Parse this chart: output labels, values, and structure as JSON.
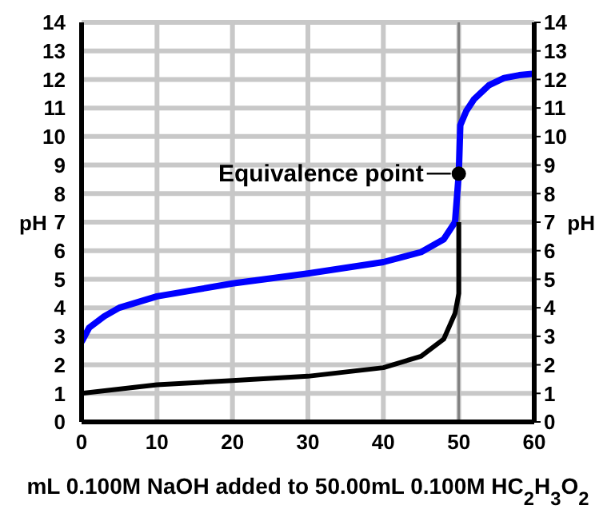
{
  "chart_data": {
    "type": "line",
    "xlabel": "mL 0.100M NaOH added to 50.00mL 0.100M HC$_{2}$H$_{3}$O$_{2}$",
    "ylabel": "pH",
    "y2label": "pH",
    "xlim": [
      0,
      60
    ],
    "xticks": [
      0,
      10,
      20,
      30,
      40,
      50,
      60
    ],
    "ylim": [
      0,
      14
    ],
    "yticks": [
      0,
      1,
      2,
      3,
      4,
      5,
      6,
      7,
      8,
      9,
      10,
      11,
      12,
      13,
      14
    ],
    "y2lim": [
      0,
      14
    ],
    "y2ticks": [
      0,
      1,
      2,
      3,
      4,
      5,
      6,
      7,
      8,
      9,
      10,
      11,
      12,
      13,
      14
    ],
    "grid": true,
    "marker": "none",
    "line_style": "solid",
    "ref_lines": [
      {
        "axis": "x",
        "value": 50,
        "label": null,
        "color": "#808080"
      }
    ],
    "annotations": [
      {
        "text": "Equivalence point",
        "x": 50,
        "y": 8.7
      }
    ],
    "series": [
      {
        "color": "#0000ff",
        "x": [
          0,
          1,
          3,
          5,
          10,
          20,
          30,
          40,
          45,
          48,
          49.5,
          50,
          50.2,
          51,
          52,
          54,
          56,
          58,
          60
        ],
        "values": [
          2.8,
          3.3,
          3.7,
          4.0,
          4.4,
          4.85,
          5.2,
          5.6,
          5.95,
          6.4,
          7.0,
          8.7,
          10.4,
          10.9,
          11.3,
          11.8,
          12.05,
          12.15,
          12.2
        ]
      },
      {
        "color": "#000000",
        "x": [
          0,
          10,
          20,
          30,
          40,
          45,
          48,
          49.5,
          50,
          50
        ],
        "values": [
          1.0,
          1.3,
          1.45,
          1.6,
          1.9,
          2.3,
          2.9,
          3.8,
          4.5,
          7.0
        ]
      },
      {
        "type": "scatter",
        "color": "#000000",
        "marker": "circle",
        "x": [
          50
        ],
        "values": [
          8.7
        ]
      }
    ]
  }
}
